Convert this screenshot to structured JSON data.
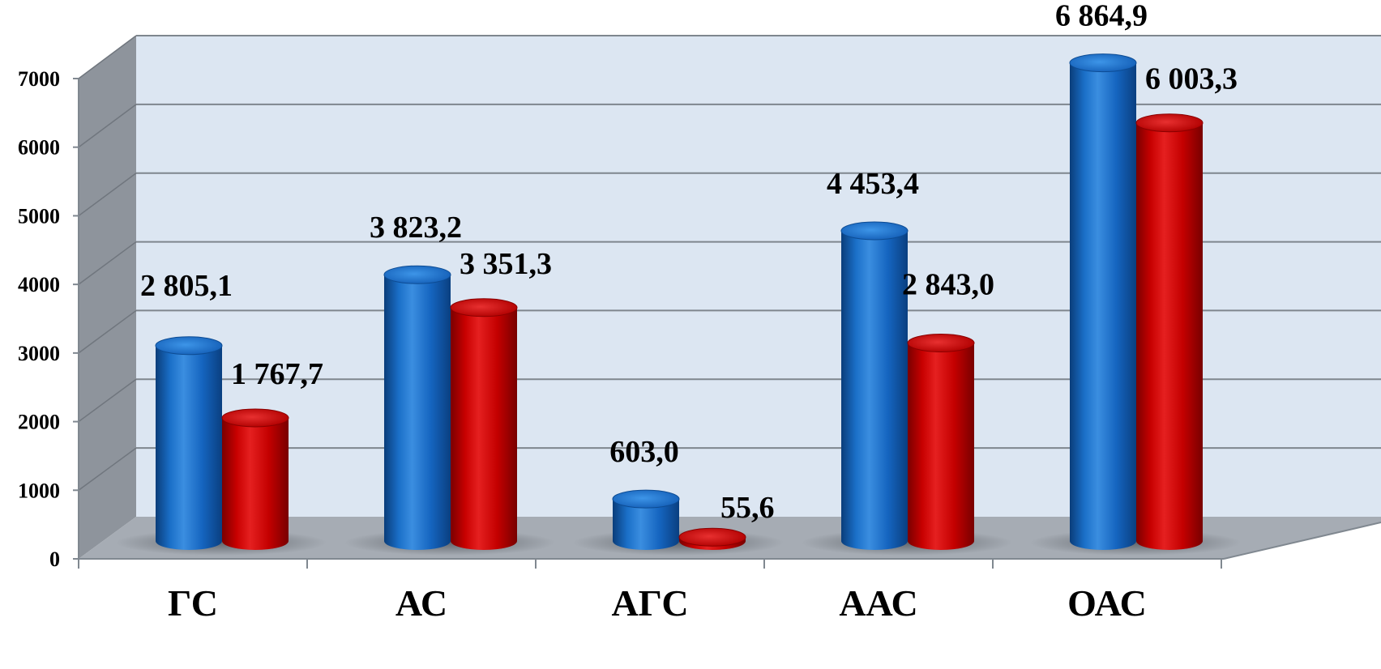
{
  "chart_data": {
    "type": "bar",
    "style": "3d-cylinder",
    "categories": [
      "ГС",
      "АС",
      "АГС",
      "ААС",
      "ОАС"
    ],
    "series": [
      {
        "color": "#1565c0",
        "values": [
          2805.1,
          3823.2,
          603.0,
          4453.4,
          6864.9
        ]
      },
      {
        "color": "#c40000",
        "values": [
          1767.7,
          3351.3,
          55.6,
          2843.0,
          6003.3
        ]
      }
    ],
    "value_labels": [
      [
        "2 805,1",
        "3 823,2",
        "603,0",
        "4 453,4",
        "6 864,9"
      ],
      [
        "1 767,7",
        "3 351,3",
        "55,6",
        "2 843,0",
        "6 003,3"
      ]
    ],
    "y_ticks": [
      "0",
      "1000",
      "2000",
      "3000",
      "4000",
      "5000",
      "6000",
      "7000"
    ],
    "ylim": [
      0,
      7000
    ],
    "grid": true,
    "legend": "none",
    "wall_color": "#dce6f2",
    "floor_color": "#a6acb4",
    "side_wall_color": "#8e949c"
  }
}
